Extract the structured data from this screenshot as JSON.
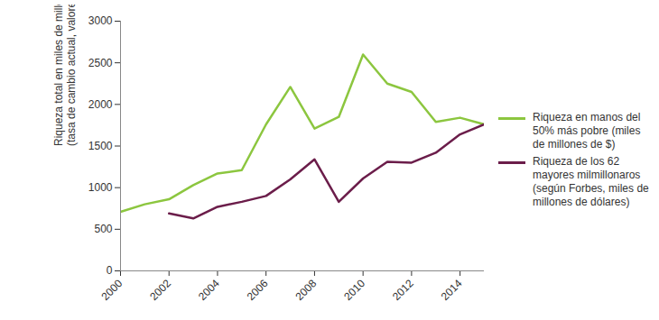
{
  "chart_data": {
    "type": "line",
    "ylabel": "Riqueza total en miles de millones de $\n(tasa de cambio actual, valores nominales)",
    "x": [
      2000,
      2001,
      2002,
      2003,
      2004,
      2005,
      2006,
      2007,
      2008,
      2009,
      2010,
      2011,
      2012,
      2013,
      2014,
      2015
    ],
    "series": [
      {
        "name": "Riqueza en manos del 50% más pobre (miles de millones de $)",
        "color": "#8cc63f",
        "values": [
          710,
          800,
          860,
          1030,
          1170,
          1210,
          1760,
          2210,
          1710,
          1850,
          2600,
          2250,
          2150,
          1790,
          1840,
          1760
        ]
      },
      {
        "name": "Riqueza de los 62 mayores milmillonaros (según Forbes, miles de millones de dólares)",
        "color": "#6b1d4a",
        "values": [
          null,
          null,
          690,
          630,
          770,
          830,
          900,
          1100,
          1340,
          830,
          1110,
          1310,
          1300,
          1420,
          1640,
          1760
        ]
      }
    ],
    "xlim": [
      2000,
      2015
    ],
    "xticks": [
      2000,
      2002,
      2004,
      2006,
      2008,
      2010,
      2012,
      2014
    ],
    "ylim": [
      0,
      3000
    ],
    "yticks": [
      0,
      500,
      1000,
      1500,
      2000,
      2500,
      3000
    ],
    "grid": false,
    "legend": "right"
  }
}
